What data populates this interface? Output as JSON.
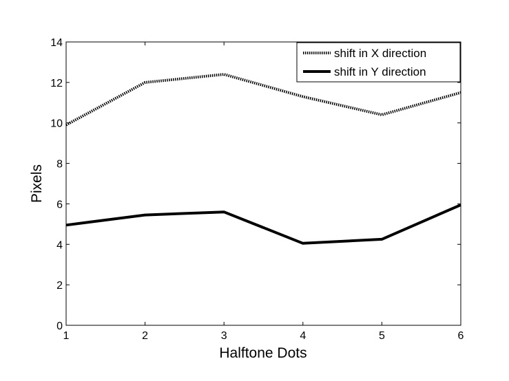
{
  "chart_data": {
    "type": "line",
    "xlabel": "Halftone Dots",
    "ylabel": "Pixels",
    "x": [
      1,
      2,
      3,
      4,
      5,
      6
    ],
    "xlim": [
      1,
      6
    ],
    "ylim": [
      0,
      14
    ],
    "xticks": [
      "1",
      "2",
      "3",
      "4",
      "5",
      "6"
    ],
    "yticks": [
      "0",
      "2",
      "4",
      "6",
      "8",
      "10",
      "12",
      "14"
    ],
    "grid": false,
    "legend_position": "top-right",
    "series": [
      {
        "name": "shift in X direction",
        "style": "dotted",
        "color": "#000000",
        "values": [
          9.9,
          12.0,
          12.4,
          11.3,
          10.4,
          11.5
        ]
      },
      {
        "name": "shift in Y direction",
        "style": "solid",
        "color": "#000000",
        "values": [
          4.95,
          5.45,
          5.6,
          4.05,
          4.25,
          5.95
        ]
      }
    ]
  }
}
